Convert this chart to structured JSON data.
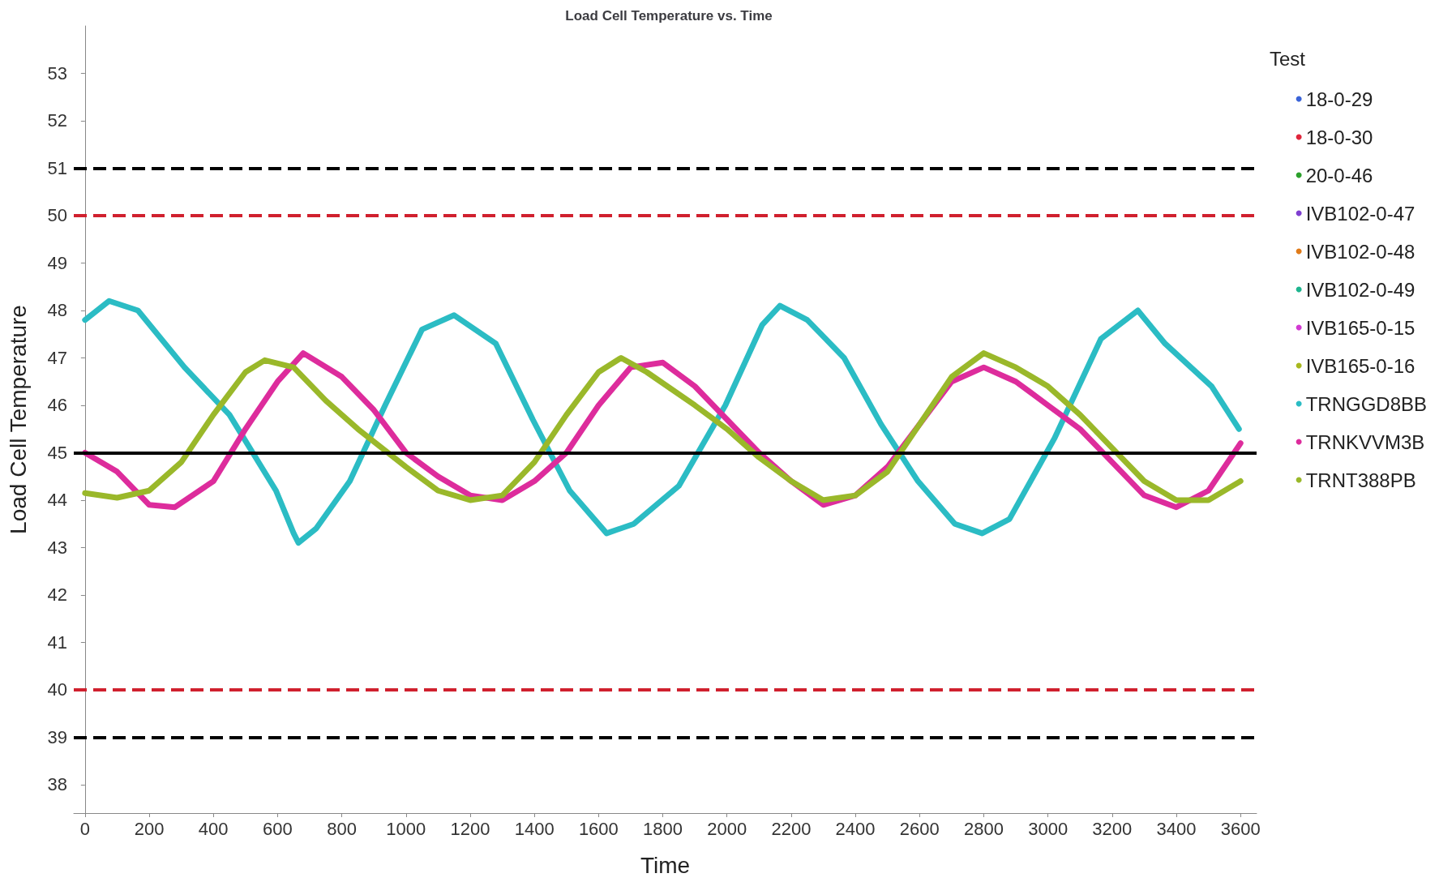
{
  "chart_data": {
    "type": "line",
    "title": "Load Cell Temperature vs. Time",
    "xlabel": "Time",
    "ylabel": "Load Cell Temperature",
    "legend_title": "Test",
    "legend": "right",
    "grid": false,
    "marker": "none",
    "line_style": "solid",
    "xlim": [
      -35,
      3650
    ],
    "xticks": [
      0,
      200,
      400,
      600,
      800,
      1000,
      1200,
      1400,
      1600,
      1800,
      2000,
      2200,
      2400,
      2600,
      2800,
      3000,
      3200,
      3400,
      3600
    ],
    "ylim": [
      37.4,
      54
    ],
    "yticks": [
      38,
      39,
      40,
      41,
      42,
      43,
      44,
      45,
      46,
      47,
      48,
      49,
      50,
      51,
      52,
      53
    ],
    "ref_lines": [
      {
        "axis": "y",
        "value": 51,
        "color": "#000000",
        "line_style": "dashed"
      },
      {
        "axis": "y",
        "value": 50,
        "color": "#d0202e",
        "line_style": "dashed"
      },
      {
        "axis": "y",
        "value": 45,
        "color": "#000000",
        "line_style": "solid"
      },
      {
        "axis": "y",
        "value": 40,
        "color": "#d0202e",
        "line_style": "dashed"
      },
      {
        "axis": "y",
        "value": 39,
        "color": "#000000",
        "line_style": "dashed"
      }
    ],
    "series": [
      {
        "name": "18-0-29",
        "color": "#3b64d8"
      },
      {
        "name": "18-0-30",
        "color": "#e0263c"
      },
      {
        "name": "20-0-46",
        "color": "#2ca02c"
      },
      {
        "name": "IVB102-0-47",
        "color": "#7f3fd0"
      },
      {
        "name": "IVB102-0-48",
        "color": "#e07b1a"
      },
      {
        "name": "IVB102-0-49",
        "color": "#1fb58f"
      },
      {
        "name": "IVB165-0-15",
        "color": "#d23ad2"
      },
      {
        "name": "IVB165-0-16",
        "color": "#a8b81e"
      },
      {
        "name": "TRNGGD8BB",
        "color": "#2bbcc4",
        "x": [
          0,
          75,
          165,
          310,
          450,
          595,
          650,
          665,
          720,
          825,
          935,
          1050,
          1150,
          1280,
          1395,
          1510,
          1625,
          1710,
          1850,
          1995,
          2110,
          2165,
          2250,
          2365,
          2480,
          2595,
          2710,
          2795,
          2880,
          3020,
          3165,
          3280,
          3365,
          3510,
          3595
        ],
        "values": [
          47.8,
          48.2,
          48.0,
          46.8,
          45.8,
          44.2,
          43.3,
          43.1,
          43.4,
          44.4,
          46.0,
          47.6,
          47.9,
          47.3,
          45.7,
          44.2,
          43.3,
          43.5,
          44.3,
          46.0,
          47.7,
          48.1,
          47.8,
          47.0,
          45.6,
          44.4,
          43.5,
          43.3,
          43.6,
          45.3,
          47.4,
          48.0,
          47.3,
          46.4,
          45.5
        ]
      },
      {
        "name": "TRNKVVM3B",
        "color": "#dd2c9c",
        "x": [
          0,
          100,
          200,
          280,
          400,
          500,
          600,
          680,
          800,
          900,
          1000,
          1100,
          1200,
          1300,
          1400,
          1500,
          1600,
          1700,
          1800,
          1900,
          2000,
          2100,
          2200,
          2300,
          2400,
          2500,
          2600,
          2700,
          2800,
          2900,
          3000,
          3100,
          3200,
          3300,
          3400,
          3500,
          3600
        ],
        "values": [
          45.0,
          44.6,
          43.9,
          43.85,
          44.4,
          45.5,
          46.5,
          47.1,
          46.6,
          45.9,
          45.0,
          44.5,
          44.1,
          44.0,
          44.4,
          45.0,
          46.0,
          46.8,
          46.9,
          46.4,
          45.7,
          45.0,
          44.4,
          43.9,
          44.1,
          44.7,
          45.6,
          46.5,
          46.8,
          46.5,
          46.0,
          45.5,
          44.8,
          44.1,
          43.85,
          44.2,
          45.2
        ]
      },
      {
        "name": "TRNT388PB",
        "color": "#9ab82a",
        "x": [
          0,
          100,
          200,
          300,
          400,
          500,
          560,
          650,
          750,
          850,
          1000,
          1100,
          1200,
          1300,
          1400,
          1500,
          1600,
          1670,
          1750,
          1900,
          2000,
          2100,
          2200,
          2300,
          2400,
          2500,
          2600,
          2700,
          2800,
          2900,
          3000,
          3100,
          3200,
          3300,
          3400,
          3500,
          3600
        ],
        "values": [
          44.15,
          44.05,
          44.2,
          44.8,
          45.8,
          46.7,
          46.95,
          46.8,
          46.1,
          45.5,
          44.7,
          44.2,
          44.0,
          44.1,
          44.8,
          45.8,
          46.7,
          47.0,
          46.7,
          46.0,
          45.5,
          44.9,
          44.4,
          44.0,
          44.1,
          44.6,
          45.6,
          46.6,
          47.1,
          46.8,
          46.4,
          45.8,
          45.1,
          44.4,
          44.0,
          44.0,
          44.4
        ]
      }
    ]
  }
}
